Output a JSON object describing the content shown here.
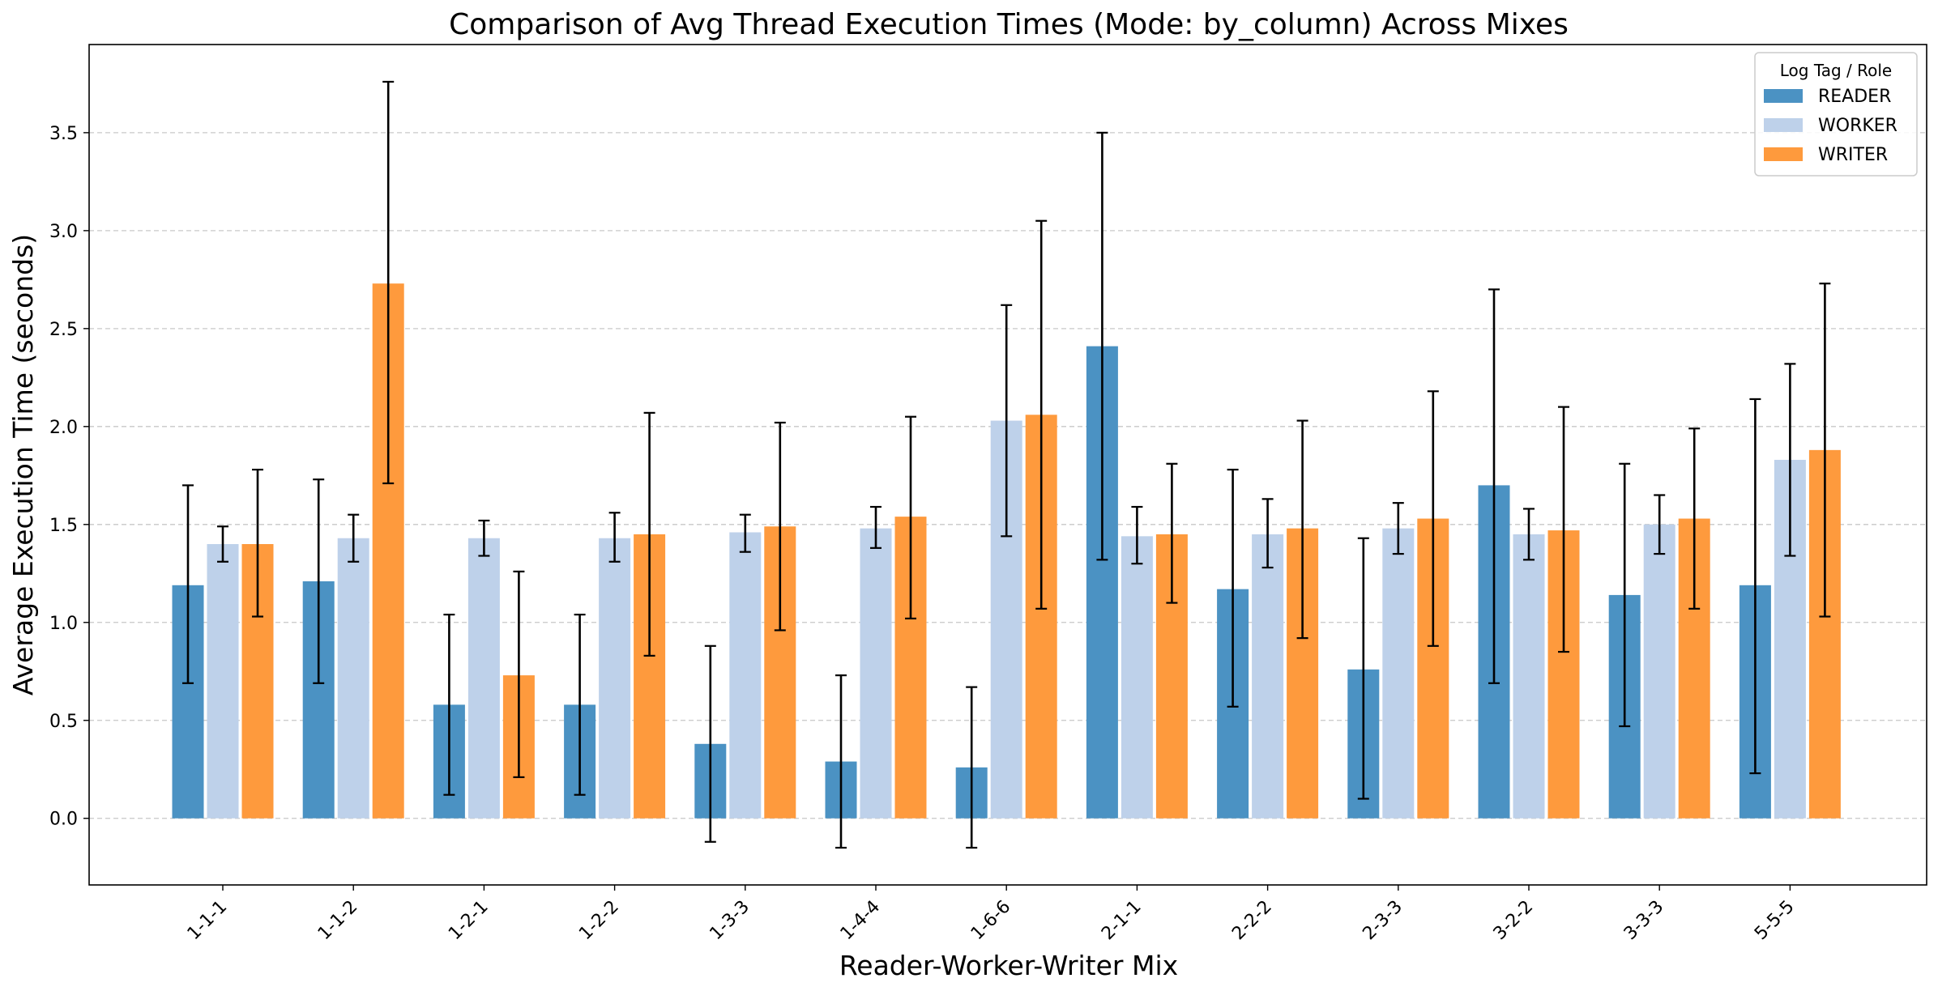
{
  "chart_data": {
    "type": "bar",
    "title": "Comparison of Avg Thread Execution Times (Mode: by_column) Across Mixes",
    "xlabel": "Reader-Worker-Writer Mix",
    "ylabel": "Average Execution Time (seconds)",
    "ylim": [
      -0.34,
      3.95
    ],
    "yticks": [
      "0.0",
      "0.5",
      "1.0",
      "1.5",
      "2.0",
      "2.5",
      "3.0",
      "3.5"
    ],
    "grid": "y-dashed",
    "legend_title": "Log Tag / Role",
    "legend_position": "top-right",
    "categories": [
      "1-1-1",
      "1-1-2",
      "1-2-1",
      "1-2-2",
      "1-3-3",
      "1-4-4",
      "1-6-6",
      "2-1-1",
      "2-2-2",
      "2-3-3",
      "3-2-2",
      "3-3-3",
      "5-5-5"
    ],
    "series": [
      {
        "name": "READER",
        "color": "#4b92c3",
        "values": [
          1.19,
          1.21,
          0.58,
          0.58,
          0.38,
          0.29,
          0.26,
          2.41,
          1.17,
          0.76,
          1.7,
          1.14,
          1.19
        ],
        "err_low": [
          0.69,
          0.69,
          0.12,
          0.12,
          -0.12,
          -0.15,
          -0.15,
          1.32,
          0.57,
          0.1,
          0.69,
          0.47,
          0.23
        ],
        "err_high": [
          1.7,
          1.73,
          1.04,
          1.04,
          0.88,
          0.73,
          0.67,
          3.5,
          1.78,
          1.43,
          2.7,
          1.81,
          2.14
        ]
      },
      {
        "name": "WORKER",
        "color": "#bed1ea",
        "values": [
          1.4,
          1.43,
          1.43,
          1.43,
          1.46,
          1.48,
          2.03,
          1.44,
          1.45,
          1.48,
          1.45,
          1.5,
          1.83
        ],
        "err_low": [
          1.31,
          1.31,
          1.34,
          1.31,
          1.36,
          1.38,
          1.44,
          1.3,
          1.28,
          1.35,
          1.32,
          1.35,
          1.34
        ],
        "err_high": [
          1.49,
          1.55,
          1.52,
          1.56,
          1.55,
          1.59,
          2.62,
          1.59,
          1.63,
          1.61,
          1.58,
          1.65,
          2.32
        ]
      },
      {
        "name": "WRITER",
        "color": "#fe9a3d",
        "values": [
          1.4,
          2.73,
          0.73,
          1.45,
          1.49,
          1.54,
          2.06,
          1.45,
          1.48,
          1.53,
          1.47,
          1.53,
          1.88
        ],
        "err_low": [
          1.03,
          1.71,
          0.21,
          0.83,
          0.96,
          1.02,
          1.07,
          1.1,
          0.92,
          0.88,
          0.85,
          1.07,
          1.03
        ],
        "err_high": [
          1.78,
          3.76,
          1.26,
          2.07,
          2.02,
          2.05,
          3.05,
          1.81,
          2.03,
          2.18,
          2.1,
          1.99,
          2.73
        ]
      }
    ]
  }
}
